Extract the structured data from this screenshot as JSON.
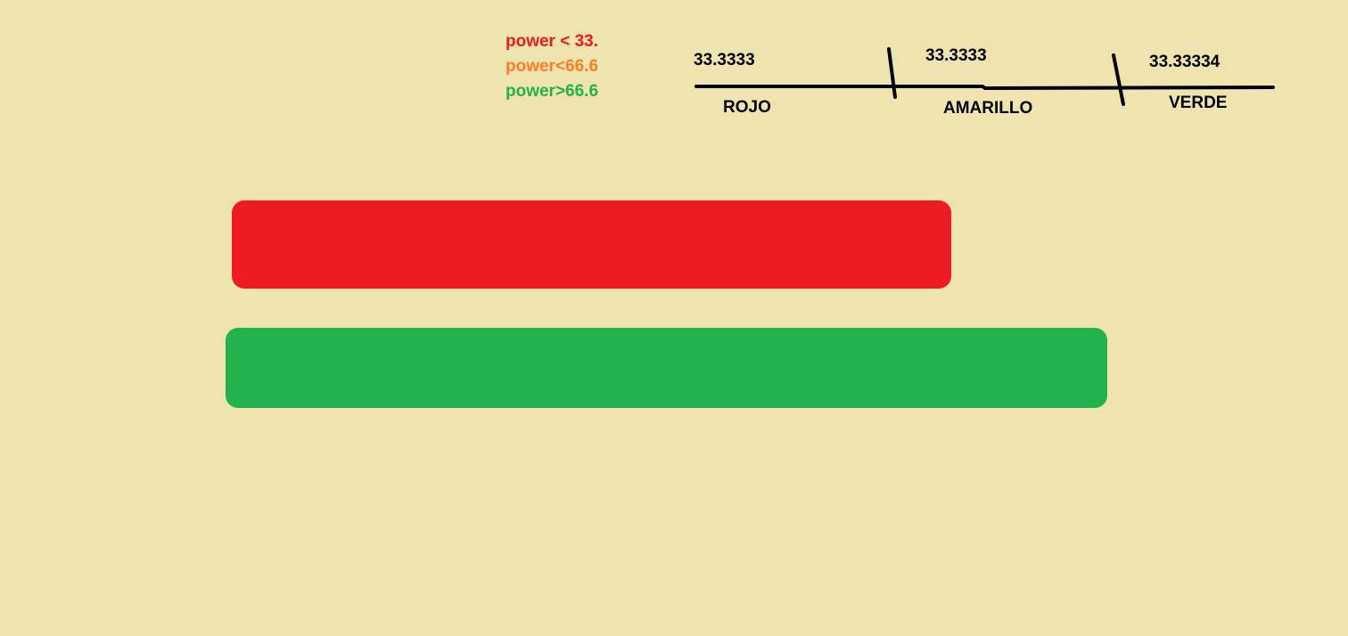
{
  "canvas": {
    "background": "#efe3b0"
  },
  "legend": {
    "items": [
      {
        "text": "power < 33.",
        "color": "#ed1c24"
      },
      {
        "text": "power<66.6",
        "color": "#ff7f27"
      },
      {
        "text": "power>66.6",
        "color": "#22b14c"
      }
    ]
  },
  "scale": {
    "segments": [
      {
        "value": "33.3333",
        "label": "ROJO"
      },
      {
        "value": "33.3333",
        "label": "AMARILLO"
      },
      {
        "value": "33.33334",
        "label": "VERDE"
      }
    ],
    "line_color": "#000000"
  },
  "bars": [
    {
      "color": "#ed1c24"
    },
    {
      "color": "#22b14c"
    }
  ]
}
